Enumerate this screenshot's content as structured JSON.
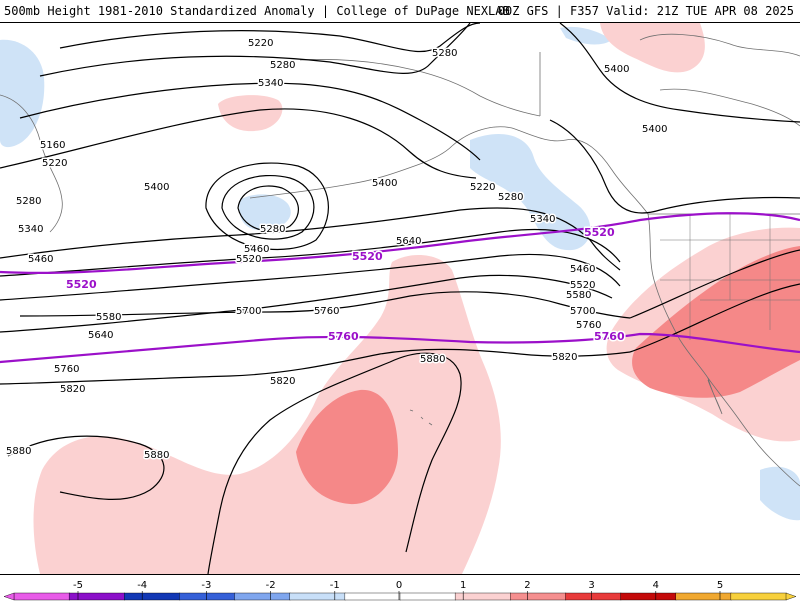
{
  "header": {
    "left_title": "500mb Height 1981-2010 Standardized Anomaly | College of DuPage NEXLAB",
    "right_title": "00Z GFS | F357 Valid: 21Z TUE APR 08 2025"
  },
  "contour_labels": {
    "h5160": "5160",
    "h5220": "5220",
    "h5280": "5280",
    "h5340": "5340",
    "h5400": "5400",
    "h5460": "5460",
    "h5520": "5520",
    "h5580": "5580",
    "h5640": "5640",
    "h5700": "5700",
    "h5760": "5760",
    "h5820": "5820",
    "h5880": "5880"
  },
  "legend": {
    "ticks": [
      "-5",
      "-4",
      "-3",
      "-2",
      "-1",
      "0",
      "1",
      "2",
      "3",
      "4",
      "5"
    ],
    "colors": [
      "#e85be8",
      "#8b10c9",
      "#1238b5",
      "#3560d8",
      "#7fa6ee",
      "#c8dff8",
      "#ffffff",
      "#ffffff",
      "#fbd1d1",
      "#f58f8f",
      "#e83b3b",
      "#c40a0a",
      "#f0a830",
      "#f7d03c"
    ]
  },
  "palette": {
    "contour": "#000000",
    "reference_contour": "#9b10c9",
    "coast": "#707070",
    "neg_anom": "#cfe3f7",
    "pos_anom_light": "#fbd1d1",
    "pos_anom_mid": "#f58888"
  }
}
